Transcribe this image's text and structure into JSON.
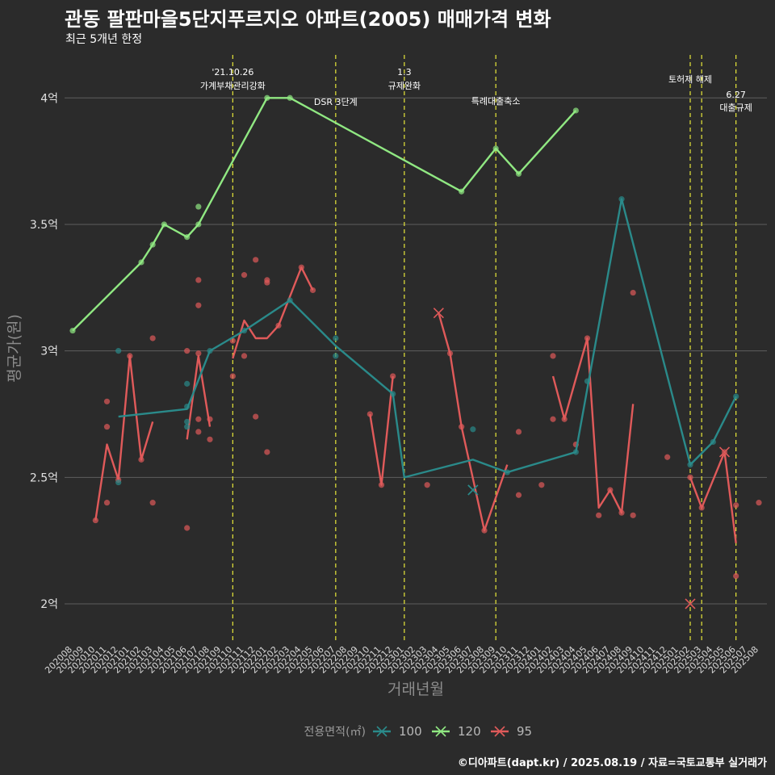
{
  "title": "관동 팔판마을5단지푸르지오 아파트(2005) 매매가격 변화",
  "subtitle": "최근 5개년 한정",
  "caption": "©디아파트(dapt.kr) / 2025.08.19 / 자료=국토교통부 실거래가",
  "chart_data": {
    "type": "line",
    "xlabel": "거래년월",
    "ylabel": "평균가(원)",
    "ylim": [
      1.85,
      4.17
    ],
    "y_ticks": [
      {
        "value": 2,
        "label": "2억"
      },
      {
        "value": 2.5,
        "label": "2.5억"
      },
      {
        "value": 3,
        "label": "3억"
      },
      {
        "value": 3.5,
        "label": "3.5억"
      },
      {
        "value": 4,
        "label": "4억"
      }
    ],
    "x_categories": [
      "202008",
      "202009",
      "202010",
      "202011",
      "202012",
      "202101",
      "202102",
      "202103",
      "202104",
      "202105",
      "202106",
      "202107",
      "202108",
      "202109",
      "202110",
      "202111",
      "202112",
      "202201",
      "202202",
      "202203",
      "202204",
      "202205",
      "202206",
      "202207",
      "202208",
      "202209",
      "202210",
      "202211",
      "202212",
      "202301",
      "202302",
      "202303",
      "202304",
      "202305",
      "202306",
      "202307",
      "202308",
      "202309",
      "202310",
      "202311",
      "202312",
      "202401",
      "202402",
      "202403",
      "202404",
      "202405",
      "202406",
      "202407",
      "202408",
      "202409",
      "202410",
      "202411",
      "202412",
      "202501",
      "202502",
      "202503",
      "202504",
      "202505",
      "202506",
      "202507",
      "202508"
    ],
    "grid": true,
    "legend_position": "bottom",
    "legend_title": "전용면적(㎡)",
    "events": [
      {
        "x": "202110",
        "label_lines": [
          "'21.10.26",
          "가계부채관리강화"
        ]
      },
      {
        "x": "202207",
        "label_lines": [
          "DSR 3단계"
        ]
      },
      {
        "x": "202301",
        "label_lines": [
          "1.3",
          "규제완화"
        ]
      },
      {
        "x": "202309",
        "label_lines": [
          "특례대출축소"
        ]
      },
      {
        "x": "202502",
        "label_lines": [
          "토허제 해제"
        ]
      },
      {
        "x": "202503",
        "label_lines": []
      },
      {
        "x": "202506",
        "label_lines": [
          "6.27",
          "대출규제"
        ]
      }
    ],
    "series": [
      {
        "name": "100",
        "color": "#2a8a8a",
        "line": [
          [
            "202012",
            2.74
          ],
          [
            "202106",
            2.77
          ],
          [
            "202108",
            3.0
          ],
          [
            "202111",
            3.08
          ],
          [
            "202203",
            3.2
          ],
          [
            "202207",
            3.02
          ],
          [
            "202212",
            2.83
          ],
          [
            "202301",
            2.5
          ],
          [
            "202307",
            2.57
          ],
          [
            "202310",
            2.52
          ],
          [
            "202404",
            2.6
          ],
          [
            "202408",
            3.6
          ],
          [
            "202502",
            2.55
          ],
          [
            "202504",
            2.64
          ],
          [
            "202506",
            2.82
          ]
        ],
        "points": [
          [
            "202012",
            3.0
          ],
          [
            "202012",
            2.48
          ],
          [
            "202106",
            2.87
          ],
          [
            "202106",
            2.78
          ],
          [
            "202106",
            2.72
          ],
          [
            "202106",
            2.7
          ],
          [
            "202108",
            3.0
          ],
          [
            "202111",
            3.08
          ],
          [
            "202203",
            3.2
          ],
          [
            "202207",
            3.05
          ],
          [
            "202207",
            2.98
          ],
          [
            "202212",
            2.83
          ],
          [
            "202307",
            2.69
          ],
          [
            "202310",
            2.52
          ],
          [
            "202404",
            2.6
          ],
          [
            "202405",
            2.88
          ],
          [
            "202408",
            3.6
          ],
          [
            "202502",
            2.55
          ],
          [
            "202504",
            2.64
          ],
          [
            "202506",
            2.82
          ]
        ],
        "crosses": [
          [
            "202307",
            2.45
          ]
        ]
      },
      {
        "name": "120",
        "color": "#90e882",
        "line": [
          [
            "202008",
            3.08
          ],
          [
            "202102",
            3.35
          ],
          [
            "202103",
            3.42
          ],
          [
            "202104",
            3.5
          ],
          [
            "202106",
            3.45
          ],
          [
            "202107",
            3.5
          ],
          [
            "202201",
            4.0
          ],
          [
            "202203",
            4.0
          ],
          [
            "202306",
            3.63
          ],
          [
            "202309",
            3.8
          ],
          [
            "202311",
            3.7
          ],
          [
            "202404",
            3.95
          ]
        ],
        "points": [
          [
            "202008",
            3.08
          ],
          [
            "202102",
            3.35
          ],
          [
            "202103",
            3.42
          ],
          [
            "202104",
            3.5
          ],
          [
            "202106",
            3.45
          ],
          [
            "202107",
            3.5
          ],
          [
            "202107",
            3.57
          ],
          [
            "202201",
            4.0
          ],
          [
            "202203",
            4.0
          ],
          [
            "202306",
            3.63
          ],
          [
            "202309",
            3.8
          ],
          [
            "202311",
            3.7
          ],
          [
            "202404",
            3.95
          ]
        ],
        "crosses": []
      },
      {
        "name": "95",
        "color": "#e05a5a",
        "line": [
          [
            [
              "202010",
              2.33
            ],
            [
              "202011",
              2.63
            ],
            [
              "202012",
              2.49
            ],
            [
              "202101",
              2.98
            ],
            [
              "202102",
              2.57
            ],
            [
              "202103",
              2.72
            ]
          ],
          [
            [
              "202106",
              2.65
            ],
            [
              "202107",
              2.98
            ],
            [
              "202108",
              2.7
            ]
          ],
          [
            [
              "202110",
              2.97
            ],
            [
              "202111",
              3.12
            ],
            [
              "202112",
              3.05
            ],
            [
              "202201",
              3.05
            ],
            [
              "202202",
              3.1
            ],
            [
              "202204",
              3.33
            ],
            [
              "202205",
              3.24
            ]
          ],
          [
            [
              "202210",
              2.75
            ],
            [
              "202211",
              2.47
            ],
            [
              "202212",
              2.9
            ]
          ],
          [
            [
              "202304",
              3.15
            ],
            [
              "202305",
              2.99
            ],
            [
              "202306",
              2.7
            ],
            [
              "202308",
              2.29
            ],
            [
              "202310",
              2.55
            ]
          ],
          [
            [
              "202402",
              2.9
            ],
            [
              "202403",
              2.73
            ],
            [
              "202405",
              3.05
            ],
            [
              "202406",
              2.38
            ],
            [
              "202407",
              2.45
            ],
            [
              "202408",
              2.36
            ],
            [
              "202409",
              2.79
            ]
          ],
          [
            [
              "202502",
              2.5
            ],
            [
              "202503",
              2.38
            ],
            [
              "202505",
              2.6
            ],
            [
              "202506",
              2.24
            ]
          ]
        ],
        "points": [
          [
            "202010",
            2.33
          ],
          [
            "202011",
            2.8
          ],
          [
            "202011",
            2.7
          ],
          [
            "202011",
            2.4
          ],
          [
            "202012",
            2.49
          ],
          [
            "202101",
            2.98
          ],
          [
            "202102",
            2.57
          ],
          [
            "202103",
            3.05
          ],
          [
            "202103",
            2.4
          ],
          [
            "202106",
            3.0
          ],
          [
            "202106",
            2.3
          ],
          [
            "202107",
            3.28
          ],
          [
            "202107",
            3.18
          ],
          [
            "202107",
            2.99
          ],
          [
            "202107",
            2.73
          ],
          [
            "202107",
            2.68
          ],
          [
            "202108",
            2.73
          ],
          [
            "202108",
            2.65
          ],
          [
            "202110",
            2.9
          ],
          [
            "202110",
            3.04
          ],
          [
            "202111",
            3.3
          ],
          [
            "202111",
            2.98
          ],
          [
            "202112",
            3.36
          ],
          [
            "202112",
            2.74
          ],
          [
            "202201",
            3.28
          ],
          [
            "202201",
            3.27
          ],
          [
            "202201",
            2.6
          ],
          [
            "202202",
            3.1
          ],
          [
            "202204",
            3.33
          ],
          [
            "202205",
            3.24
          ],
          [
            "202210",
            2.75
          ],
          [
            "202211",
            2.47
          ],
          [
            "202212",
            2.9
          ],
          [
            "202303",
            2.47
          ],
          [
            "202305",
            2.99
          ],
          [
            "202306",
            2.7
          ],
          [
            "202308",
            2.29
          ],
          [
            "202311",
            2.68
          ],
          [
            "202311",
            2.43
          ],
          [
            "202401",
            2.47
          ],
          [
            "202402",
            2.98
          ],
          [
            "202402",
            2.73
          ],
          [
            "202403",
            2.73
          ],
          [
            "202404",
            2.63
          ],
          [
            "202405",
            3.05
          ],
          [
            "202406",
            2.35
          ],
          [
            "202407",
            2.45
          ],
          [
            "202408",
            2.36
          ],
          [
            "202409",
            3.23
          ],
          [
            "202409",
            2.35
          ],
          [
            "202412",
            2.58
          ],
          [
            "202502",
            2.5
          ],
          [
            "202503",
            2.38
          ],
          [
            "202505",
            2.6
          ],
          [
            "202506",
            2.39
          ],
          [
            "202506",
            2.11
          ],
          [
            "202508",
            2.4
          ]
        ],
        "crosses": [
          [
            "202304",
            3.15
          ],
          [
            "202502",
            2.0
          ],
          [
            "202505",
            2.6
          ]
        ]
      }
    ]
  }
}
